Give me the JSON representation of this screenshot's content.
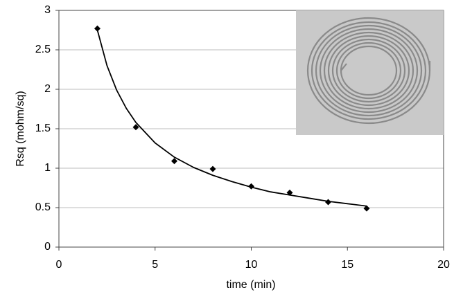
{
  "chart_data": {
    "type": "scatter",
    "x_label": "time (min)",
    "y_label": "Rsq (mohm/sq)",
    "xlim": [
      0,
      20
    ],
    "xticks": [
      0,
      5,
      10,
      15,
      20
    ],
    "ylim": [
      0,
      3
    ],
    "yticks": [
      0,
      0.5,
      1,
      1.5,
      2,
      2.5,
      3
    ],
    "grid": true,
    "series": [
      {
        "type": "scatter",
        "marker": "diamond",
        "color": "#000000",
        "x": [
          2,
          4,
          6,
          8,
          10,
          12,
          14,
          16
        ],
        "values": [
          2.77,
          1.52,
          1.09,
          0.99,
          0.77,
          0.69,
          0.57,
          0.49
        ]
      },
      {
        "type": "line",
        "color": "#000000",
        "x": [
          2,
          2.5,
          3,
          3.5,
          4,
          5,
          6,
          7,
          8,
          9,
          10,
          11,
          12,
          13,
          14,
          15,
          16
        ],
        "values": [
          2.75,
          2.3,
          1.99,
          1.76,
          1.58,
          1.32,
          1.14,
          1.01,
          0.91,
          0.83,
          0.76,
          0.7,
          0.66,
          0.62,
          0.58,
          0.55,
          0.52
        ]
      }
    ]
  }
}
